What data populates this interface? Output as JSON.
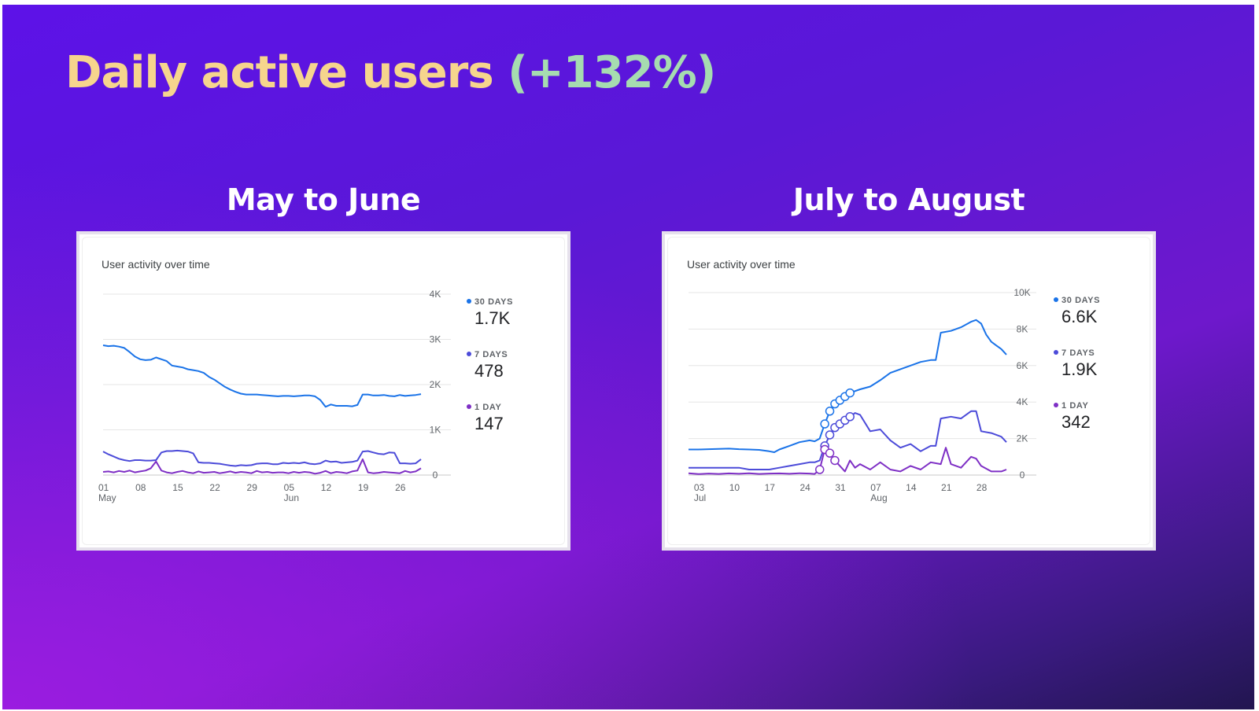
{
  "headline": {
    "main": "Daily active users",
    "change": "(+132%)"
  },
  "colors": {
    "title_main": "#f6d58d",
    "title_change": "#a6dcb0",
    "series_30d": "#1a73e8",
    "series_7d": "#4c4bd9",
    "series_1d": "#7e2fc5"
  },
  "panels": [
    {
      "title": "May to June",
      "card_title": "User activity over time",
      "legend": [
        {
          "label": "30 DAYS",
          "value": "1.7K"
        },
        {
          "label": "7 DAYS",
          "value": "478"
        },
        {
          "label": "1 DAY",
          "value": "147"
        }
      ]
    },
    {
      "title": "July to August",
      "card_title": "User activity over time",
      "legend": [
        {
          "label": "30 DAYS",
          "value": "6.6K"
        },
        {
          "label": "7 DAYS",
          "value": "1.9K"
        },
        {
          "label": "1 DAY",
          "value": "342"
        }
      ]
    }
  ],
  "chart_data": [
    {
      "type": "line",
      "title": "User activity over time",
      "x_ticks": [
        {
          "label": "01",
          "sub": "May",
          "day": 0
        },
        {
          "label": "08",
          "sub": "",
          "day": 7
        },
        {
          "label": "15",
          "sub": "",
          "day": 14
        },
        {
          "label": "22",
          "sub": "",
          "day": 21
        },
        {
          "label": "29",
          "sub": "",
          "day": 28
        },
        {
          "label": "05",
          "sub": "Jun",
          "day": 35
        },
        {
          "label": "12",
          "sub": "",
          "day": 42
        },
        {
          "label": "19",
          "sub": "",
          "day": 49
        },
        {
          "label": "26",
          "sub": "",
          "day": 56
        }
      ],
      "x_range": [
        0,
        60
      ],
      "y_ticks": [
        "0",
        "1K",
        "2K",
        "3K",
        "4K"
      ],
      "ylim": [
        0,
        4000
      ],
      "grid": true,
      "legend_position": "right",
      "series": [
        {
          "name": "30 DAYS",
          "days": [
            0,
            1,
            2,
            3,
            4,
            5,
            6,
            7,
            8,
            9,
            10,
            11,
            12,
            13,
            14,
            15,
            16,
            17,
            18,
            19,
            20,
            21,
            22,
            23,
            24,
            25,
            26,
            27,
            28,
            29,
            30,
            31,
            32,
            33,
            34,
            35,
            36,
            37,
            38,
            39,
            40,
            41,
            42,
            43,
            44,
            45,
            46,
            47,
            48,
            49,
            50,
            51,
            52,
            53,
            54,
            55,
            56,
            57,
            58,
            59,
            60
          ],
          "values": [
            2870,
            2850,
            2860,
            2840,
            2810,
            2720,
            2620,
            2560,
            2540,
            2550,
            2600,
            2560,
            2520,
            2420,
            2400,
            2380,
            2340,
            2320,
            2300,
            2260,
            2170,
            2110,
            2030,
            1950,
            1890,
            1840,
            1800,
            1780,
            1780,
            1780,
            1770,
            1760,
            1750,
            1740,
            1750,
            1750,
            1740,
            1750,
            1760,
            1760,
            1740,
            1660,
            1510,
            1560,
            1530,
            1530,
            1530,
            1520,
            1550,
            1780,
            1780,
            1760,
            1760,
            1770,
            1750,
            1740,
            1770,
            1750,
            1760,
            1770,
            1790
          ]
        },
        {
          "name": "7 DAYS",
          "days": [
            0,
            1,
            2,
            3,
            4,
            5,
            6,
            7,
            8,
            9,
            10,
            11,
            12,
            13,
            14,
            15,
            16,
            17,
            18,
            19,
            20,
            21,
            22,
            23,
            24,
            25,
            26,
            27,
            28,
            29,
            30,
            31,
            32,
            33,
            34,
            35,
            36,
            37,
            38,
            39,
            40,
            41,
            42,
            43,
            44,
            45,
            46,
            47,
            48,
            49,
            50,
            51,
            52,
            53,
            54,
            55,
            56,
            57,
            58,
            59,
            60
          ],
          "values": [
            520,
            460,
            410,
            360,
            330,
            310,
            330,
            330,
            320,
            320,
            330,
            500,
            530,
            530,
            540,
            530,
            520,
            480,
            280,
            270,
            270,
            260,
            250,
            230,
            210,
            200,
            220,
            210,
            220,
            250,
            260,
            260,
            240,
            240,
            270,
            260,
            270,
            260,
            280,
            250,
            240,
            260,
            320,
            290,
            300,
            270,
            280,
            290,
            320,
            520,
            530,
            500,
            470,
            460,
            500,
            490,
            260,
            260,
            250,
            260,
            350
          ]
        },
        {
          "name": "1 DAY",
          "days": [
            0,
            1,
            2,
            3,
            4,
            5,
            6,
            7,
            8,
            9,
            10,
            11,
            12,
            13,
            14,
            15,
            16,
            17,
            18,
            19,
            20,
            21,
            22,
            23,
            24,
            25,
            26,
            27,
            28,
            29,
            30,
            31,
            32,
            33,
            34,
            35,
            36,
            37,
            38,
            39,
            40,
            41,
            42,
            43,
            44,
            45,
            46,
            47,
            48,
            49,
            50,
            51,
            52,
            53,
            54,
            55,
            56,
            57,
            58,
            59,
            60
          ],
          "values": [
            70,
            80,
            60,
            90,
            70,
            100,
            60,
            80,
            100,
            150,
            300,
            100,
            60,
            40,
            70,
            90,
            60,
            40,
            80,
            50,
            60,
            70,
            40,
            60,
            80,
            50,
            70,
            60,
            40,
            90,
            60,
            70,
            50,
            60,
            60,
            40,
            70,
            50,
            70,
            60,
            30,
            50,
            90,
            40,
            70,
            60,
            40,
            80,
            100,
            350,
            60,
            40,
            50,
            70,
            60,
            50,
            40,
            90,
            60,
            80,
            150
          ]
        }
      ]
    },
    {
      "type": "line",
      "title": "User activity over time",
      "x_ticks": [
        {
          "label": "03",
          "sub": "Jul",
          "day": 0
        },
        {
          "label": "10",
          "sub": "",
          "day": 7
        },
        {
          "label": "17",
          "sub": "",
          "day": 14
        },
        {
          "label": "24",
          "sub": "",
          "day": 21
        },
        {
          "label": "31",
          "sub": "",
          "day": 28
        },
        {
          "label": "07",
          "sub": "Aug",
          "day": 35
        },
        {
          "label": "14",
          "sub": "",
          "day": 42
        },
        {
          "label": "21",
          "sub": "",
          "day": 49
        },
        {
          "label": "28",
          "sub": "",
          "day": 56
        }
      ],
      "x_range": [
        -2,
        61
      ],
      "y_ticks": [
        "0",
        "2K",
        "4K",
        "6K",
        "8K",
        "10K"
      ],
      "ylim": [
        0,
        10000
      ],
      "grid": true,
      "legend_position": "right",
      "series": [
        {
          "name": "30 DAYS",
          "days": [
            -2,
            0,
            2,
            4,
            6,
            8,
            10,
            12,
            14,
            15,
            16,
            18,
            20,
            22,
            23,
            24,
            25,
            26,
            27,
            28,
            29,
            30,
            32,
            34,
            36,
            38,
            40,
            42,
            44,
            46,
            47,
            48,
            50,
            52,
            54,
            55,
            56,
            57,
            58,
            59,
            60,
            61
          ],
          "values": [
            1400,
            1400,
            1420,
            1430,
            1450,
            1420,
            1400,
            1380,
            1300,
            1250,
            1400,
            1600,
            1800,
            1900,
            1850,
            2000,
            2800,
            3500,
            3900,
            4100,
            4300,
            4500,
            4700,
            4850,
            5200,
            5600,
            5800,
            6000,
            6200,
            6300,
            6300,
            7800,
            7900,
            8100,
            8400,
            8500,
            8300,
            7700,
            7300,
            7100,
            6900,
            6600
          ]
        },
        {
          "name": "7 DAYS",
          "days": [
            -2,
            0,
            2,
            4,
            6,
            8,
            10,
            12,
            14,
            16,
            18,
            20,
            22,
            23,
            24,
            25,
            26,
            27,
            28,
            29,
            30,
            31,
            32,
            34,
            36,
            38,
            40,
            42,
            44,
            46,
            47,
            48,
            50,
            52,
            54,
            55,
            56,
            58,
            60,
            61
          ],
          "values": [
            400,
            400,
            400,
            400,
            400,
            400,
            300,
            300,
            300,
            400,
            500,
            600,
            700,
            700,
            800,
            1600,
            2200,
            2600,
            2800,
            3000,
            3200,
            3400,
            3300,
            2400,
            2500,
            1900,
            1500,
            1700,
            1300,
            1600,
            1600,
            3100,
            3200,
            3100,
            3500,
            3500,
            2400,
            2300,
            2100,
            1800
          ]
        },
        {
          "name": "1 DAY",
          "days": [
            -2,
            0,
            2,
            4,
            6,
            8,
            10,
            12,
            14,
            16,
            18,
            20,
            22,
            23,
            24,
            25,
            26,
            27,
            28,
            29,
            30,
            31,
            32,
            34,
            36,
            38,
            40,
            42,
            44,
            46,
            48,
            49,
            50,
            52,
            54,
            55,
            56,
            58,
            60,
            61
          ],
          "values": [
            100,
            50,
            80,
            60,
            90,
            70,
            100,
            60,
            80,
            90,
            70,
            100,
            80,
            60,
            300,
            1400,
            1200,
            800,
            500,
            200,
            800,
            400,
            600,
            300,
            700,
            300,
            200,
            500,
            300,
            700,
            600,
            1500,
            600,
            400,
            1000,
            900,
            500,
            200,
            200,
            300
          ]
        }
      ],
      "annotation_days": [
        {
          "series": "30 DAYS",
          "days": [
            25,
            26,
            27,
            28,
            29,
            30
          ]
        },
        {
          "series": "7 DAYS",
          "days": [
            25,
            26,
            27,
            28,
            29,
            30
          ]
        },
        {
          "series": "1 DAY",
          "days": [
            24,
            25,
            26,
            27
          ]
        }
      ]
    }
  ]
}
